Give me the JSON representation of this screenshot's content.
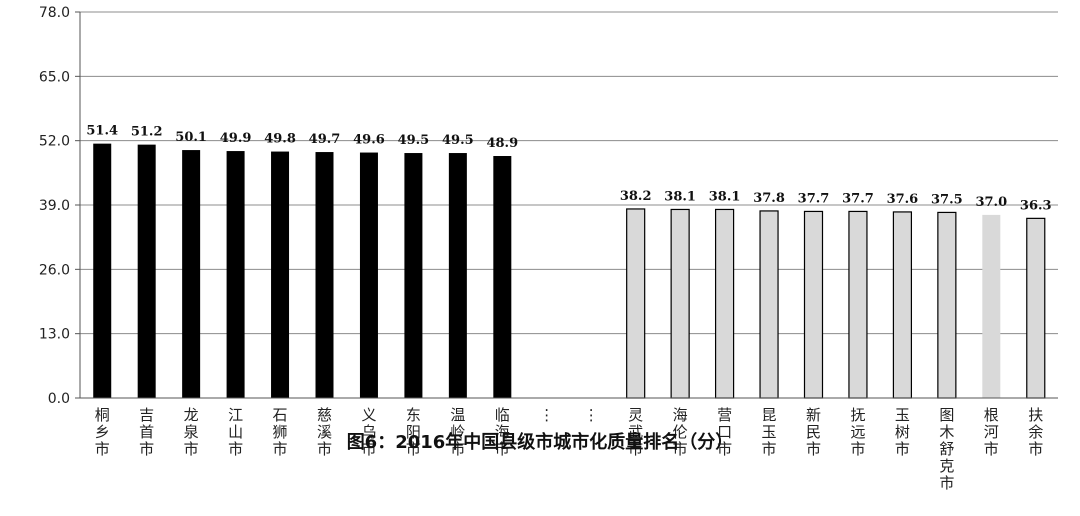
{
  "chart_data": {
    "type": "bar",
    "title": "图6：2016年中国县级市城市化质量排名（分）",
    "ylim": [
      0,
      78
    ],
    "yticks": [
      "0.0",
      "13.0",
      "26.0",
      "39.0",
      "52.0",
      "65.0",
      "78.0"
    ],
    "grid": true,
    "categories": [
      "桐乡市",
      "吉首市",
      "龙泉市",
      "江山市",
      "石狮市",
      "慈溪市",
      "义乌市",
      "东阳市",
      "温岭市",
      "临海市",
      "⋮",
      "⋮",
      "灵武市",
      "海伦市",
      "营口市",
      "昆玉市",
      "新民市",
      "抚远市",
      "玉树市",
      "图木舒克市",
      "根河市",
      "扶余市"
    ],
    "values": [
      51.4,
      51.2,
      50.1,
      49.9,
      49.8,
      49.7,
      49.6,
      49.5,
      49.5,
      48.9,
      null,
      null,
      38.2,
      38.1,
      38.1,
      37.8,
      37.7,
      37.7,
      37.6,
      37.5,
      37.0,
      36.3
    ],
    "value_labels": [
      "51.4",
      "51.2",
      "50.1",
      "49.9",
      "49.8",
      "49.7",
      "49.6",
      "49.5",
      "49.5",
      "48.9",
      "",
      "",
      "38.2",
      "38.1",
      "38.1",
      "37.8",
      "37.7",
      "37.7",
      "37.6",
      "37.5",
      "37.0",
      "36.3"
    ],
    "bar_colors": {
      "top": "#000000",
      "bottom": "#d9d9d9",
      "bottom_edge": "#000000"
    }
  }
}
